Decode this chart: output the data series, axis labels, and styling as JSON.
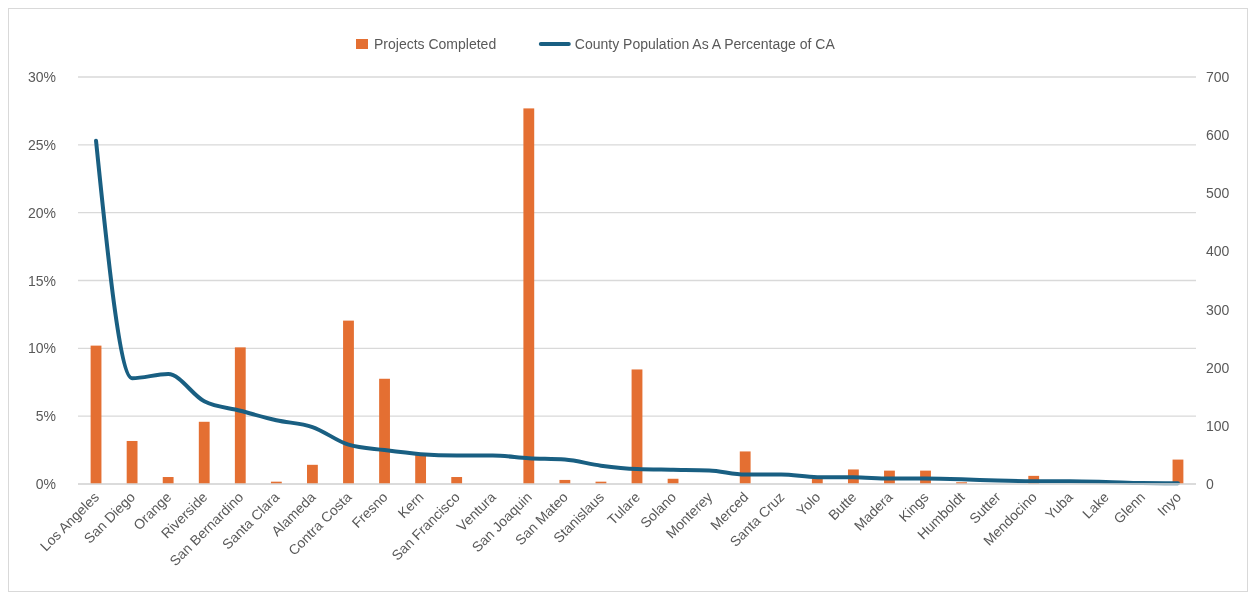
{
  "chart_data": {
    "type": "bar",
    "categories": [
      "Los Angeles",
      "San Diego",
      "Orange",
      "Riverside",
      "San Bernardino",
      "Santa Clara",
      "Alameda",
      "Contra Costa",
      "Fresno",
      "Kern",
      "San Francisco",
      "Ventura",
      "San Joaquin",
      "San Mateo",
      "Stanislaus",
      "Tulare",
      "Solano",
      "Monterey",
      "Merced",
      "Santa Cruz",
      "Yolo",
      "Butte",
      "Madera",
      "Kings",
      "Humboldt",
      "Sutter",
      "Mendocino",
      "Yuba",
      "Lake",
      "Glenn",
      "Inyo"
    ],
    "series": [
      {
        "name": "Projects Completed",
        "axis": "y2",
        "color": "#e46f32",
        "values": [
          238,
          74,
          12,
          107,
          235,
          4,
          33,
          281,
          181,
          50,
          12,
          0,
          646,
          7,
          4,
          197,
          9,
          0,
          56,
          0,
          10,
          25,
          23,
          23,
          3,
          0,
          14,
          0,
          0,
          0,
          42
        ]
      },
      {
        "name": "County Population As A Percentage of CA",
        "type": "line",
        "color": "#195f82",
        "values": [
          25.3,
          7.8,
          8.1,
          6.1,
          5.4,
          4.7,
          4.2,
          2.9,
          2.5,
          2.2,
          2.1,
          2.1,
          1.9,
          1.8,
          1.35,
          1.1,
          1.05,
          1.0,
          0.7,
          0.7,
          0.5,
          0.5,
          0.4,
          0.4,
          0.35,
          0.25,
          0.2,
          0.2,
          0.15,
          0.07,
          0.05
        ]
      }
    ],
    "ylim": [
      0,
      30
    ],
    "yticks": [
      {
        "value": 0,
        "label": "0%"
      },
      {
        "value": 5,
        "label": "5%"
      },
      {
        "value": 10,
        "label": "10%"
      },
      {
        "value": 15,
        "label": "15%"
      },
      {
        "value": 20,
        "label": "20%"
      },
      {
        "value": 25,
        "label": "25%"
      },
      {
        "value": 30,
        "label": "30%"
      }
    ],
    "y2lim": [
      0,
      700
    ],
    "y2ticks": [
      0,
      100,
      200,
      300,
      400,
      500,
      600,
      700
    ],
    "grid": "y",
    "legend": "top",
    "marker": "none",
    "line_style": "solid"
  }
}
